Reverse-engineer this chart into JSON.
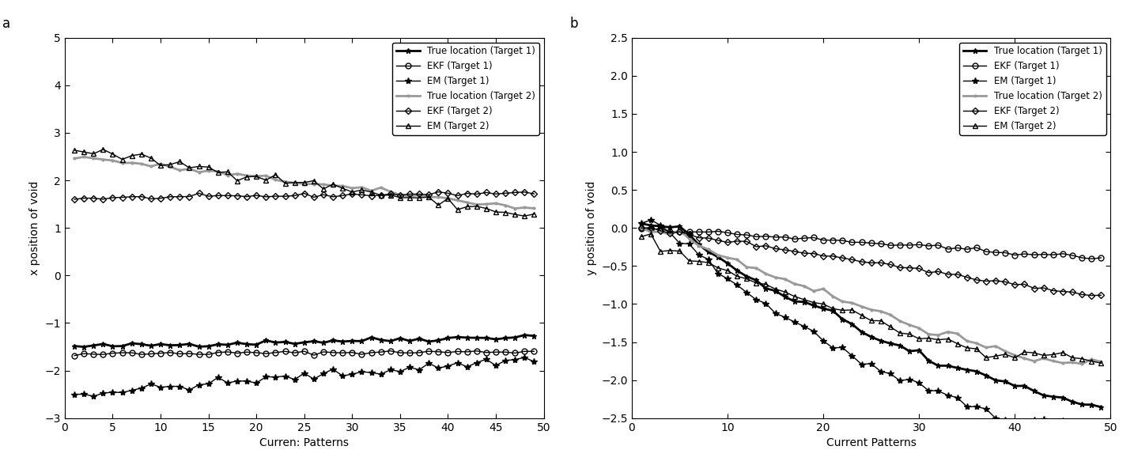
{
  "panel_a": {
    "title": "a",
    "xlabel": "Curren: Patterns",
    "ylabel": "x position of void",
    "xlim": [
      0,
      50
    ],
    "ylim": [
      -3,
      5
    ],
    "yticks": [
      -3,
      -2,
      -1,
      0,
      1,
      2,
      3,
      4,
      5
    ],
    "xticks": [
      0,
      5,
      10,
      15,
      20,
      25,
      30,
      35,
      40,
      45,
      50
    ]
  },
  "panel_b": {
    "title": "b",
    "xlabel": "Current Patterns",
    "ylabel": "y position of void",
    "xlim": [
      0,
      50
    ],
    "ylim": [
      -2.5,
      2.5
    ],
    "yticks": [
      -2.5,
      -2,
      -1.5,
      -1,
      -0.5,
      0,
      0.5,
      1,
      1.5,
      2,
      2.5
    ],
    "xticks": [
      0,
      10,
      20,
      30,
      40,
      50
    ]
  },
  "legend_labels": [
    "True location (Target 1)",
    "EKF (Target 1)",
    "EM (Target 1)",
    "True location (Target 2)",
    "EKF (Target 2)",
    "EM (Target 2)"
  ]
}
